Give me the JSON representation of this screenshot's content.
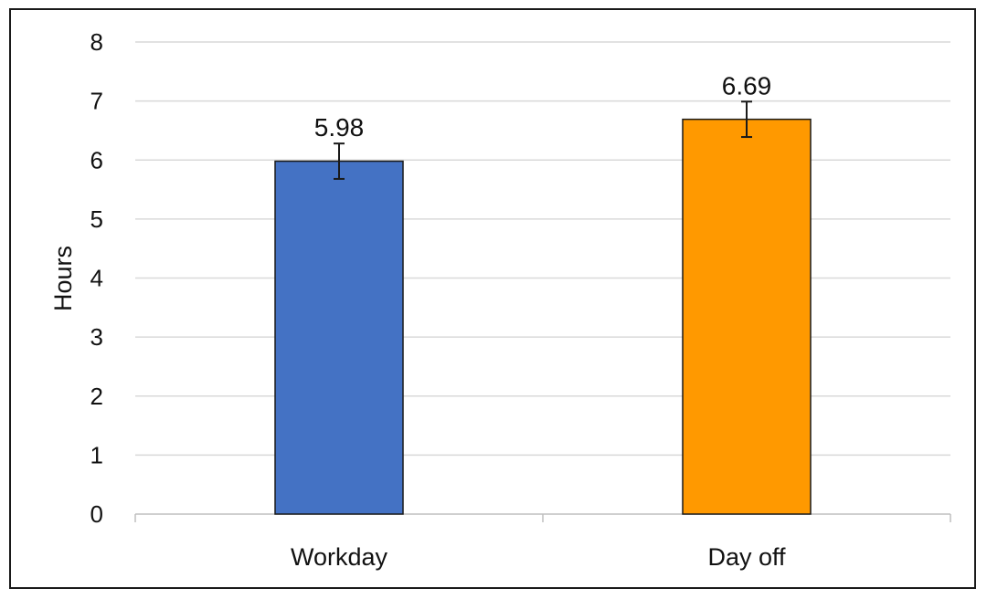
{
  "chart_data": {
    "type": "bar",
    "title": "",
    "xlabel": "",
    "ylabel": "Hours",
    "ylim": [
      0,
      8
    ],
    "yticks": [
      0,
      1,
      2,
      3,
      4,
      5,
      6,
      7,
      8
    ],
    "grid": true,
    "legend": "none",
    "categories": [
      "Workday",
      "Day off"
    ],
    "values": [
      5.98,
      6.69
    ],
    "error_bars": [
      0.3,
      0.3
    ],
    "data_labels": [
      "5.98",
      "6.69"
    ],
    "colors": [
      "#4472c4",
      "#ff9900"
    ]
  }
}
